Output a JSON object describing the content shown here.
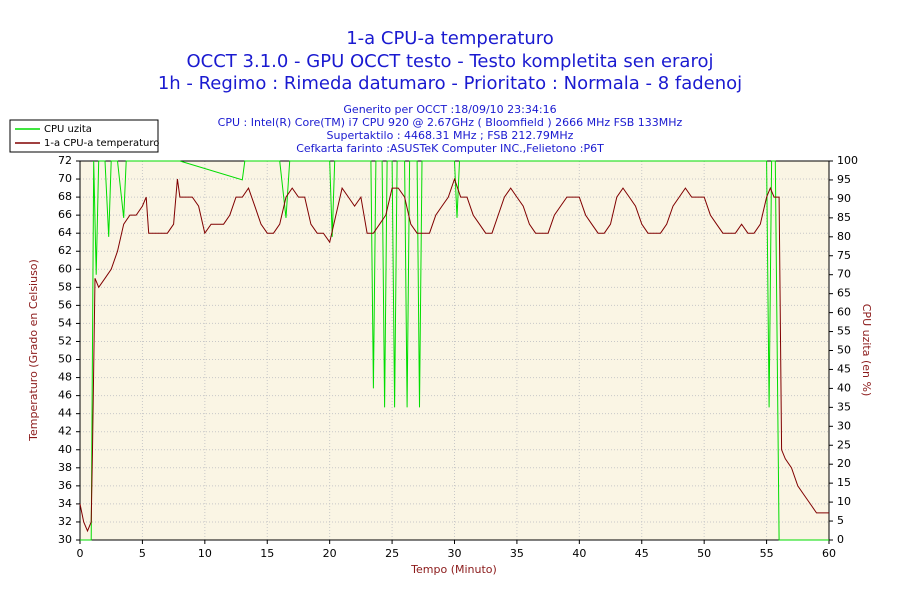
{
  "chart_data": {
    "type": "line",
    "title": [
      "1-a CPU-a temperaturo",
      "OCCT 3.1.0 - GPU OCCT testo - Testo kompletita sen eraroj",
      "1h - Regimo : Rimeda datumaro - Prioritato : Normala - 8 fadenoj"
    ],
    "subtitle": [
      "Generito per OCCT :18/09/10 23:34:16",
      "CPU : Intel(R) Core(TM) i7 CPU 920 @ 2.67GHz ( Bloomfield ) 2666 MHz FSB 133MHz",
      "Supertaktilo : 4468.31 MHz ; FSB 212.79MHz",
      "Cefkarta farinto :ASUSTeK Computer INC.,Felietono :P6T"
    ],
    "x_label": "Tempo (Minuto)",
    "y_label": "Temperaturo (Grado en Celsiuso)",
    "y2_label": "CPU uzita (en %)",
    "xlim": [
      0,
      60
    ],
    "xticks": [
      0,
      5,
      10,
      15,
      20,
      25,
      30,
      35,
      40,
      45,
      50,
      55,
      60
    ],
    "ylim": [
      30,
      72
    ],
    "yticks": [
      30,
      32,
      34,
      36,
      38,
      40,
      42,
      44,
      46,
      48,
      50,
      52,
      54,
      56,
      58,
      60,
      62,
      64,
      66,
      68,
      70,
      72
    ],
    "y2lim": [
      0,
      100
    ],
    "y2ticks": [
      0,
      5,
      10,
      15,
      20,
      25,
      30,
      35,
      40,
      45,
      50,
      55,
      60,
      65,
      70,
      75,
      80,
      85,
      90,
      95,
      100
    ],
    "grid": true,
    "legend": "top-left",
    "series": [
      {
        "name": "CPU uzita",
        "color": "#00dd00",
        "axis": "y2",
        "x": [
          0,
          0.9,
          1.1,
          1.3,
          1.5,
          2,
          2.3,
          2.5,
          3,
          3.5,
          3.7,
          5,
          8,
          13,
          13.2,
          16,
          16.5,
          16.8,
          20,
          20.2,
          20.4,
          23.3,
          23.5,
          23.7,
          24.2,
          24.4,
          24.6,
          25,
          25.2,
          25.4,
          26,
          26.2,
          26.4,
          27,
          27.2,
          27.4,
          30,
          30.2,
          30.4,
          55,
          55.2,
          55.4,
          55.7,
          56,
          60
        ],
        "values": [
          0,
          0,
          100,
          70,
          100,
          100,
          80,
          100,
          100,
          85,
          100,
          100,
          100,
          95,
          100,
          100,
          85,
          100,
          100,
          80,
          100,
          100,
          40,
          100,
          100,
          35,
          100,
          100,
          35,
          100,
          100,
          35,
          100,
          100,
          35,
          100,
          100,
          85,
          100,
          100,
          35,
          100,
          100,
          0,
          0
        ]
      },
      {
        "name": "1-a CPU-a temperaturo",
        "color": "#800000",
        "x": [
          0,
          0.3,
          0.6,
          0.9,
          1.0,
          1.2,
          1.5,
          2.0,
          2.5,
          3.0,
          3.5,
          4.0,
          4.5,
          5.0,
          5.3,
          5.5,
          6,
          6.5,
          7,
          7.5,
          7.8,
          8,
          8.5,
          9,
          9.5,
          10,
          10.5,
          11,
          11.5,
          12,
          12.5,
          13,
          13.5,
          14,
          14.5,
          15,
          15.5,
          16,
          16.5,
          17,
          17.5,
          18,
          18.5,
          19,
          19.5,
          20,
          20.5,
          21,
          21.5,
          22,
          22.5,
          23,
          23.5,
          24,
          24.5,
          25,
          25.5,
          26,
          26.5,
          27,
          27.5,
          28,
          28.5,
          29,
          29.5,
          30,
          30.5,
          31,
          31.5,
          32,
          32.5,
          33,
          33.5,
          34,
          34.5,
          35,
          35.5,
          36,
          36.5,
          37,
          37.5,
          38,
          38.5,
          39,
          39.5,
          40,
          40.5,
          41,
          41.5,
          42,
          42.5,
          43,
          43.5,
          44,
          44.5,
          45,
          45.5,
          46,
          46.5,
          47,
          47.5,
          48,
          48.5,
          49,
          49.5,
          50,
          50.5,
          51,
          51.5,
          52,
          52.5,
          53,
          53.5,
          54,
          54.5,
          55,
          55.3,
          55.6,
          56,
          56.2,
          56.5,
          57,
          57.5,
          58,
          58.5,
          59,
          59.5,
          60
        ],
        "values": [
          34,
          32,
          31,
          32,
          40,
          59,
          58,
          59,
          60,
          62,
          65,
          66,
          66,
          67,
          68,
          64,
          64,
          64,
          64,
          65,
          70,
          68,
          68,
          68,
          67,
          64,
          65,
          65,
          65,
          66,
          68,
          68,
          69,
          67,
          65,
          64,
          64,
          65,
          68,
          69,
          68,
          68,
          65,
          64,
          64,
          63,
          66,
          69,
          68,
          67,
          68,
          64,
          64,
          65,
          66,
          69,
          69,
          68,
          65,
          64,
          64,
          64,
          66,
          67,
          68,
          70,
          68,
          68,
          66,
          65,
          64,
          64,
          66,
          68,
          69,
          68,
          67,
          65,
          64,
          64,
          64,
          66,
          67,
          68,
          68,
          68,
          66,
          65,
          64,
          64,
          65,
          68,
          69,
          68,
          67,
          65,
          64,
          64,
          64,
          65,
          67,
          68,
          69,
          68,
          68,
          68,
          66,
          65,
          64,
          64,
          64,
          65,
          64,
          64,
          65,
          68,
          69,
          68,
          68,
          40,
          39,
          38,
          36,
          35,
          34,
          33,
          33,
          33
        ]
      }
    ]
  }
}
